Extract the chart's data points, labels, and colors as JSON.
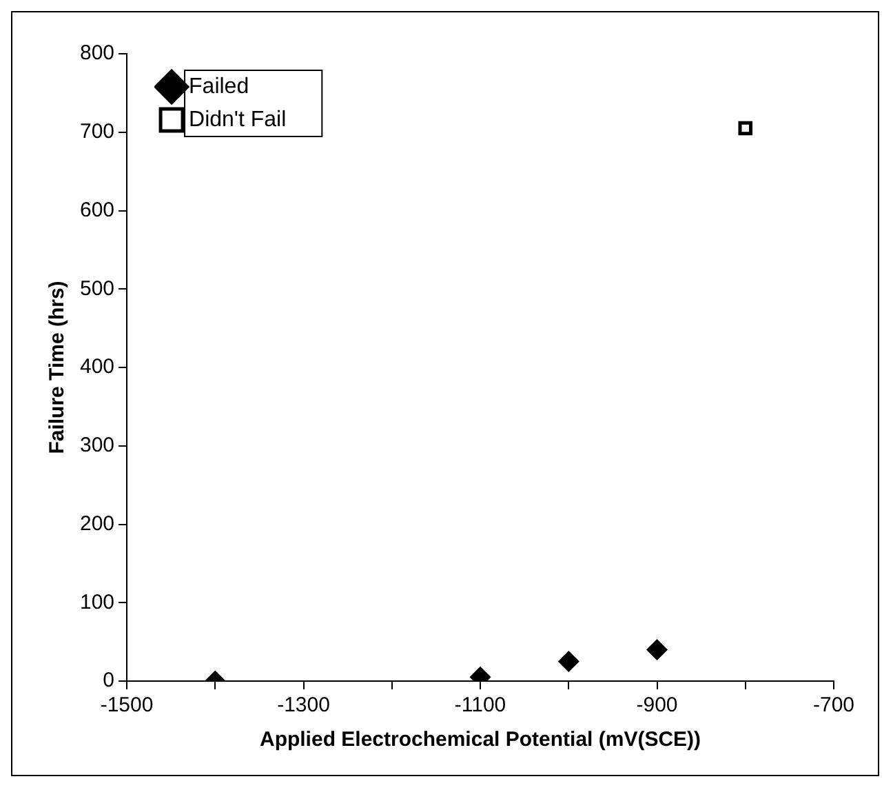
{
  "chart_data": {
    "type": "scatter",
    "xlabel": "Applied Electrochemical Potential (mV(SCE))",
    "ylabel": "Failure Time (hrs)",
    "xlim": [
      -1500,
      -700
    ],
    "xticks": [
      -1500,
      {
        "value": -1400,
        "label": null
      },
      -1300,
      {
        "value": -1200,
        "label": null
      },
      -1100,
      {
        "value": -1000,
        "label": null
      },
      -900,
      {
        "value": -800,
        "label": null
      },
      -700
    ],
    "ylim": [
      0,
      800
    ],
    "yticks": [
      0,
      100,
      200,
      300,
      400,
      500,
      600,
      700,
      800
    ],
    "grid": false,
    "legend": "top left",
    "series": [
      {
        "name": "Failed",
        "color": "#000000",
        "marker": "diamond",
        "x": [
          -1400,
          -1100,
          -1000,
          -900
        ],
        "values": [
          0,
          5,
          25,
          40
        ]
      },
      {
        "name": "Didn't Fail",
        "color": "#000000",
        "marker": "square",
        "x": [
          -800
        ],
        "values": [
          705
        ]
      }
    ]
  }
}
